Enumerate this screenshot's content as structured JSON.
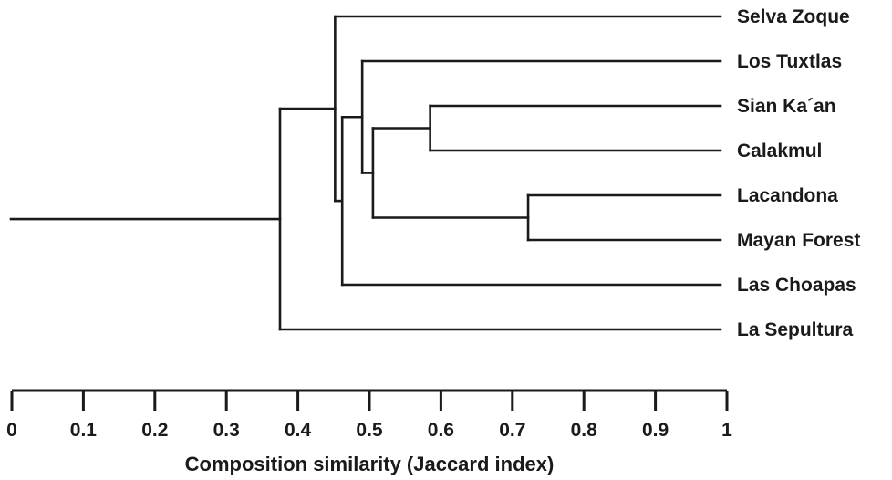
{
  "dendrogram": {
    "leaves": [
      {
        "id": "selva",
        "label": "Selva Zoque"
      },
      {
        "id": "tuxtlas",
        "label": "Los Tuxtlas"
      },
      {
        "id": "sian",
        "label": "Sian Ka´an"
      },
      {
        "id": "calakmul",
        "label": "Calakmul"
      },
      {
        "id": "lacandona",
        "label": "Lacandona"
      },
      {
        "id": "mayan",
        "label": "Mayan Forest"
      },
      {
        "id": "choapas",
        "label": "Las Choapas"
      },
      {
        "id": "sepultura",
        "label": "La Sepultura"
      }
    ],
    "merges": [
      {
        "id": "m1",
        "children": [
          "sian",
          "calakmul"
        ],
        "similarity": 0.585
      },
      {
        "id": "m2",
        "children": [
          "lacandona",
          "mayan"
        ],
        "similarity": 0.722
      },
      {
        "id": "m3",
        "children": [
          "m1",
          "m2"
        ],
        "similarity": 0.505
      },
      {
        "id": "m4",
        "children": [
          "tuxtlas",
          "m3"
        ],
        "similarity": 0.49
      },
      {
        "id": "m5",
        "children": [
          "m4",
          "choapas"
        ],
        "similarity": 0.462
      },
      {
        "id": "m6",
        "children": [
          "selva",
          "m5"
        ],
        "similarity": 0.452
      },
      {
        "id": "m7",
        "children": [
          "m6",
          "sepultura"
        ],
        "similarity": 0.375
      }
    ],
    "root": "m7"
  },
  "axis": {
    "title": "Composition similarity (Jaccard index)",
    "min": 0,
    "max": 1,
    "ticks": [
      "0",
      "0.1",
      "0.2",
      "0.3",
      "0.4",
      "0.5",
      "0.6",
      "0.7",
      "0.8",
      "0.9",
      "1"
    ]
  }
}
